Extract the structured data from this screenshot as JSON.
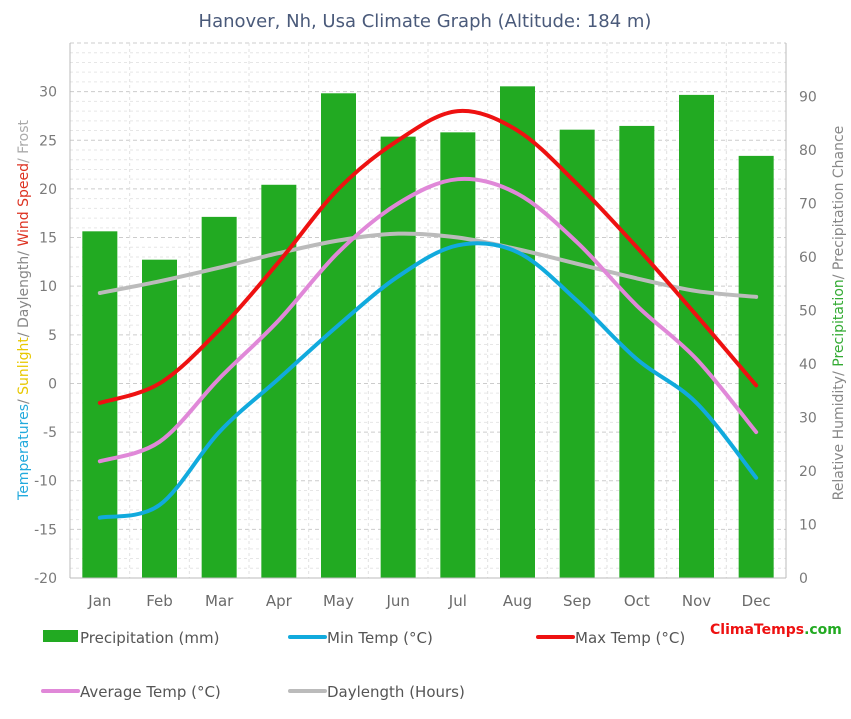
{
  "chart_data": {
    "type": "bar",
    "title": "Hanover, Nh, Usa Climate Graph (Altitude: 184 m)",
    "categories": [
      "Jan",
      "Feb",
      "Mar",
      "Apr",
      "May",
      "Jun",
      "Jul",
      "Aug",
      "Sep",
      "Oct",
      "Nov",
      "Dec"
    ],
    "left_axis": {
      "ylim": [
        -20,
        35
      ],
      "ticks": [
        -20,
        -15,
        -10,
        -5,
        0,
        5,
        10,
        15,
        20,
        25,
        30
      ],
      "title_parts": [
        {
          "text": "Temperatures",
          "color": "#22aadd"
        },
        {
          "text": "/ ",
          "color": "#888888"
        },
        {
          "text": "Sunlight",
          "color": "#e8c800"
        },
        {
          "text": "/ Daylength",
          "color": "#888888"
        },
        {
          "text": "/ ",
          "color": "#888888"
        },
        {
          "text": "Wind Speed",
          "color": "#dd3322"
        },
        {
          "text": "/ Frost",
          "color": "#aaaaaa"
        }
      ]
    },
    "right_axis": {
      "ylim": [
        0,
        100
      ],
      "ticks": [
        0,
        10,
        20,
        30,
        40,
        50,
        60,
        70,
        80,
        90
      ],
      "title_parts": [
        {
          "text": "Relative Humidity/ ",
          "color": "#888888"
        },
        {
          "text": "Precipitation",
          "color": "#33aa33"
        },
        {
          "text": "/ Precipitation Chance",
          "color": "#888888"
        }
      ]
    },
    "series": [
      {
        "name": "Precipitation (mm)",
        "kind": "bar",
        "axis": "right",
        "color": "#22aa22",
        "values": [
          64.8,
          59.5,
          67.5,
          73.5,
          90.6,
          82.5,
          83.3,
          91.9,
          83.8,
          84.5,
          90.3,
          78.9
        ]
      },
      {
        "name": "Min Temp (°C)",
        "kind": "line",
        "axis": "left",
        "color": "#11aadd",
        "values": [
          -13.8,
          -12.5,
          -5,
          0.5,
          6,
          11,
          14.2,
          13.5,
          8.5,
          2.5,
          -2,
          -9.7
        ]
      },
      {
        "name": "Max Temp (°C)",
        "kind": "line",
        "axis": "left",
        "color": "#ee1111",
        "values": [
          -2,
          0,
          5.5,
          12.5,
          20,
          25,
          28,
          26,
          20.5,
          14,
          7,
          -0.2
        ]
      },
      {
        "name": "Average Temp (°C)",
        "kind": "line",
        "axis": "left",
        "color": "#e088d8",
        "values": [
          -8,
          -6,
          0.5,
          6.5,
          13.5,
          18.5,
          21,
          19.5,
          14.5,
          8,
          2.5,
          -5
        ]
      },
      {
        "name": "Daylength (Hours)",
        "kind": "line",
        "axis": "left",
        "color": "#bbbbbb",
        "values": [
          9.3,
          10.5,
          11.9,
          13.4,
          14.7,
          15.4,
          15,
          13.8,
          12.3,
          10.8,
          9.5,
          8.9
        ]
      }
    ],
    "legend": [
      {
        "label": "Precipitation (mm)",
        "color": "#22aa22",
        "kind": "bar"
      },
      {
        "label": "Min Temp (°C)",
        "color": "#11aadd",
        "kind": "line"
      },
      {
        "label": "Max Temp (°C)",
        "color": "#ee1111",
        "kind": "line"
      },
      {
        "label": "Average Temp (°C)",
        "color": "#e088d8",
        "kind": "line"
      },
      {
        "label": "Daylength (Hours)",
        "color": "#bbbbbb",
        "kind": "line"
      }
    ],
    "brand": {
      "part1": "Clima",
      "part2": "Temps",
      "part3": ".com",
      "color1": "#ee1111",
      "color2": "#22aa22"
    }
  }
}
